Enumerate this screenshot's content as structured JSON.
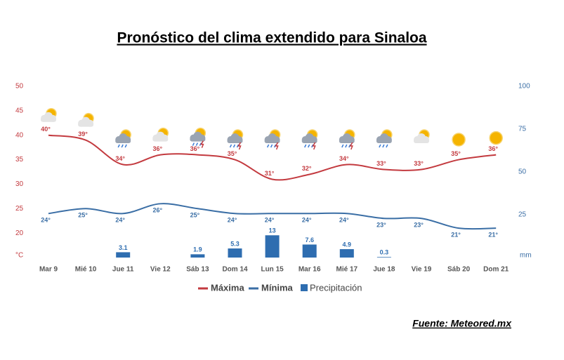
{
  "chart_data": {
    "type": "line",
    "title": "Pronóstico del clima extendido para Sinaloa",
    "source": "Fuente: Meteored.mx",
    "categories": [
      "Mar 9",
      "Mié 10",
      "Jue 11",
      "Vie 12",
      "Sáb 13",
      "Dom 14",
      "Lun 15",
      "Mar 16",
      "Mié 17",
      "Jue 18",
      "Vie 19",
      "Sáb 20",
      "Dom 21"
    ],
    "ylabel": "°C",
    "y2label": "mm",
    "ylim": [
      15,
      50
    ],
    "yticks": [
      20,
      25,
      30,
      35,
      40,
      45,
      50
    ],
    "y2lim": [
      0,
      100
    ],
    "y2ticks": [
      25,
      50,
      75,
      100
    ],
    "series": [
      {
        "name": "Máxima",
        "type": "line",
        "color": "#c33a3f",
        "values": [
          40,
          39,
          34,
          36,
          36,
          35,
          31,
          32,
          34,
          33,
          33,
          35,
          36
        ],
        "value_labels": [
          "40°",
          "39°",
          "34°",
          "36°",
          "36°",
          "35°",
          "31°",
          "32°",
          "34°",
          "33°",
          "33°",
          "35°",
          "36°"
        ]
      },
      {
        "name": "Mínima",
        "type": "line",
        "color": "#3a6ea5",
        "values": [
          24,
          25,
          24,
          26,
          25,
          24,
          24,
          24,
          24,
          23,
          23,
          21,
          21
        ],
        "value_labels": [
          "24°",
          "25°",
          "24°",
          "26°",
          "25°",
          "24°",
          "24°",
          "24°",
          "24°",
          "23°",
          "23°",
          "21°",
          "21°"
        ]
      },
      {
        "name": "Precipitación",
        "type": "bar",
        "axis": "y2",
        "color": "#2e6db0",
        "values": [
          null,
          null,
          3.1,
          null,
          1.9,
          5.3,
          13,
          7.6,
          4.9,
          0.3,
          null,
          null,
          null
        ]
      }
    ]
  }
}
